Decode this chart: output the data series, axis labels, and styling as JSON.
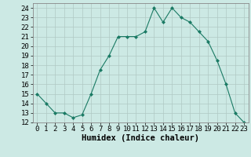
{
  "x": [
    0,
    1,
    2,
    3,
    4,
    5,
    6,
    7,
    8,
    9,
    10,
    11,
    12,
    13,
    14,
    15,
    16,
    17,
    18,
    19,
    20,
    21,
    22,
    23
  ],
  "y": [
    15,
    14,
    13,
    13,
    12.5,
    12.8,
    15,
    17.5,
    19,
    21,
    21,
    21,
    21.5,
    24,
    22.5,
    24,
    23,
    22.5,
    21.5,
    20.5,
    18.5,
    16,
    13,
    12
  ],
  "line_color": "#1a7a64",
  "marker_color": "#1a7a64",
  "bg_color": "#cce9e4",
  "grid_color": "#b0c8c4",
  "xlabel": "Humidex (Indice chaleur)",
  "xlim": [
    -0.5,
    23.5
  ],
  "ylim": [
    12,
    24.5
  ],
  "yticks": [
    12,
    13,
    14,
    15,
    16,
    17,
    18,
    19,
    20,
    21,
    22,
    23,
    24
  ],
  "xtick_labels": [
    "0",
    "1",
    "2",
    "3",
    "4",
    "5",
    "6",
    "7",
    "8",
    "9",
    "10",
    "11",
    "12",
    "13",
    "14",
    "15",
    "16",
    "17",
    "18",
    "19",
    "20",
    "21",
    "22",
    "23"
  ],
  "axis_fontsize": 7.5,
  "tick_fontsize": 6.5
}
